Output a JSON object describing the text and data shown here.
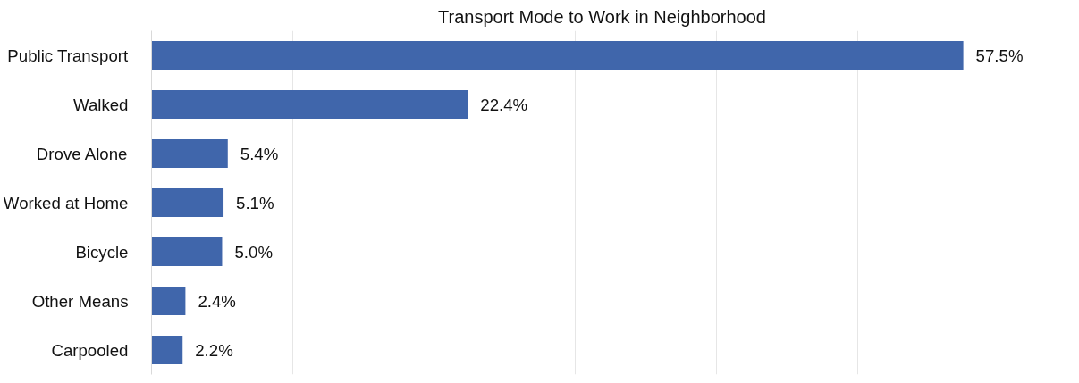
{
  "chart_data": {
    "type": "bar",
    "orientation": "horizontal",
    "title": "Transport Mode to Work in Neighborhood",
    "categories": [
      "Public Transport",
      "Walked",
      "Drove Alone",
      "Worked at Home",
      "Bicycle",
      "Other Means",
      "Carpooled"
    ],
    "values": [
      57.5,
      22.4,
      5.4,
      5.1,
      5.0,
      2.4,
      2.2
    ],
    "value_labels": [
      "57.5%",
      "22.4%",
      "5.4%",
      "5.1%",
      "5.0%",
      "2.4%",
      "2.2%"
    ],
    "color": "#4066ab",
    "grid": "x",
    "tick_labels": "y"
  }
}
